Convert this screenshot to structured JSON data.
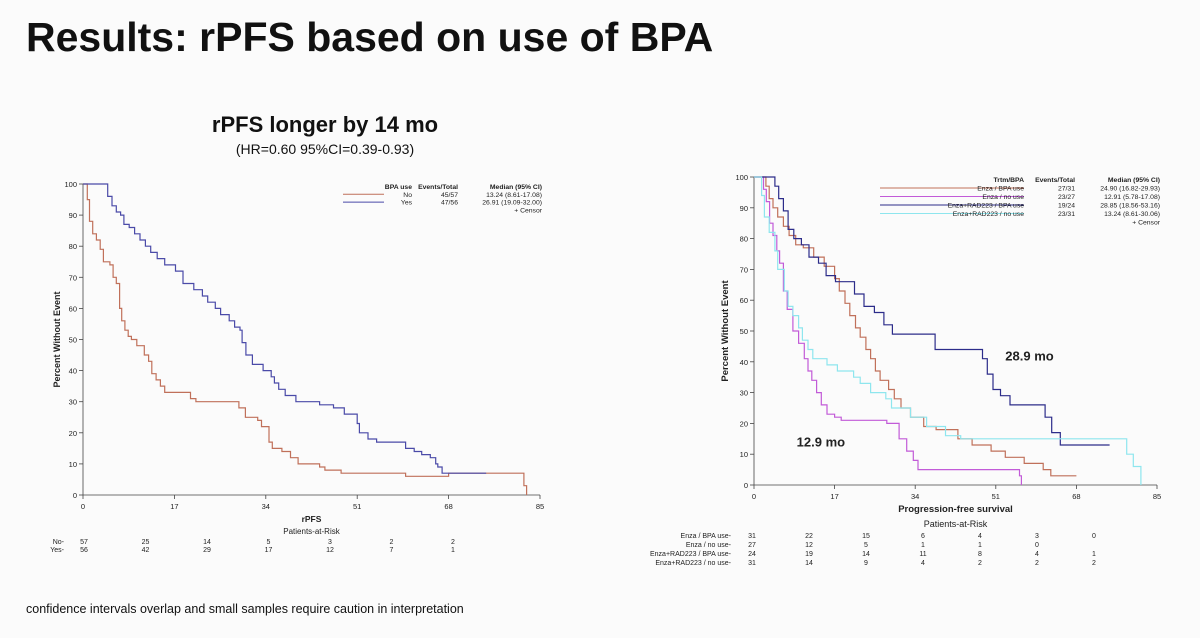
{
  "page": {
    "title": "Results: rPFS based on use of BPA",
    "subtitle": "rPFS longer by 14 mo",
    "hr_text": "(HR=0.60 95%CI=0.39-0.93)",
    "footnote": "confidence intervals overlap and small samples require caution in interpretation",
    "colors": {
      "red": "#c0705a",
      "blue": "#4a4aa8",
      "navy": "#2c2c8a",
      "violet": "#c25bd8",
      "cyan": "#8ee6ee"
    }
  },
  "chart_data": [
    {
      "type": "line",
      "ylabel": "Percent Without Event",
      "xlabel": "rPFS",
      "xlim": [
        0,
        85
      ],
      "ylim": [
        0,
        100
      ],
      "x_ticks": [
        0,
        17,
        34,
        51,
        68,
        85
      ],
      "y_ticks": [
        0,
        10,
        20,
        30,
        40,
        50,
        60,
        70,
        80,
        90,
        100
      ],
      "legend_header": [
        "BPA use",
        "Events/Total",
        "Median (95% CI)"
      ],
      "censor_label": "+ Censor",
      "series": [
        {
          "name": "No",
          "events_total": "45/57",
          "median": "13.24 (8.61-17.08)",
          "color": "#c0705a",
          "points": [
            [
              0,
              100
            ],
            [
              0.8,
              95
            ],
            [
              1.2,
              88
            ],
            [
              1.8,
              84
            ],
            [
              2.5,
              82
            ],
            [
              3.2,
              79
            ],
            [
              3.8,
              75
            ],
            [
              5,
              74
            ],
            [
              5.6,
              70
            ],
            [
              6.2,
              68
            ],
            [
              6.8,
              60
            ],
            [
              7.2,
              56
            ],
            [
              7.8,
              53
            ],
            [
              8.4,
              51
            ],
            [
              9,
              50
            ],
            [
              10,
              48
            ],
            [
              11.4,
              45
            ],
            [
              12.2,
              43
            ],
            [
              12.8,
              39
            ],
            [
              13.6,
              37
            ],
            [
              14.4,
              35
            ],
            [
              15.2,
              33
            ],
            [
              20,
              31
            ],
            [
              21,
              30
            ],
            [
              29,
              28
            ],
            [
              30.2,
              25
            ],
            [
              32.5,
              24
            ],
            [
              33.2,
              22
            ],
            [
              34.6,
              17
            ],
            [
              35.2,
              15
            ],
            [
              37,
              14
            ],
            [
              38.6,
              12
            ],
            [
              40,
              10
            ],
            [
              44,
              9
            ],
            [
              45,
              8
            ],
            [
              48,
              7
            ],
            [
              60,
              6
            ],
            [
              68,
              7
            ],
            [
              73,
              7
            ],
            [
              78,
              7
            ],
            [
              82,
              3
            ],
            [
              82.5,
              0
            ]
          ]
        },
        {
          "name": "Yes",
          "events_total": "47/56",
          "median": "26.91 (19.09-32.00)",
          "color": "#4a4aa8",
          "points": [
            [
              0,
              100
            ],
            [
              3.5,
              100
            ],
            [
              4.6,
              96
            ],
            [
              5.4,
              93
            ],
            [
              6.2,
              91
            ],
            [
              7,
              90
            ],
            [
              7.6,
              87
            ],
            [
              8.6,
              86
            ],
            [
              9.6,
              84
            ],
            [
              10.6,
              82
            ],
            [
              11.6,
              80
            ],
            [
              12.6,
              78
            ],
            [
              13.8,
              76
            ],
            [
              15.2,
              74
            ],
            [
              17.2,
              72
            ],
            [
              18.6,
              68
            ],
            [
              20.6,
              66
            ],
            [
              22.2,
              64
            ],
            [
              23.2,
              62
            ],
            [
              24.6,
              60
            ],
            [
              25.6,
              58
            ],
            [
              27.2,
              56
            ],
            [
              28.2,
              54
            ],
            [
              29.2,
              53
            ],
            [
              29.6,
              49
            ],
            [
              30.3,
              45
            ],
            [
              31.5,
              42
            ],
            [
              33.5,
              40
            ],
            [
              35,
              38
            ],
            [
              35.6,
              36
            ],
            [
              36.4,
              34
            ],
            [
              37.6,
              32
            ],
            [
              39.6,
              30
            ],
            [
              44,
              29
            ],
            [
              46.6,
              28
            ],
            [
              48.6,
              26
            ],
            [
              51,
              23
            ],
            [
              51.4,
              20
            ],
            [
              53,
              18
            ],
            [
              54.6,
              17
            ],
            [
              60,
              15
            ],
            [
              61.6,
              14
            ],
            [
              63,
              13
            ],
            [
              64.6,
              12
            ],
            [
              65.6,
              10
            ],
            [
              66,
              9
            ],
            [
              66.8,
              7
            ],
            [
              75,
              7
            ]
          ]
        }
      ],
      "risk_table": {
        "title": "Patients-at-Risk",
        "rows": [
          {
            "label": "No-",
            "values": [
              "57",
              "25",
              "14",
              "5",
              "3",
              "2",
              "2"
            ]
          },
          {
            "label": "Yes-",
            "values": [
              "56",
              "42",
              "29",
              "17",
              "12",
              "7",
              "1"
            ]
          }
        ]
      }
    },
    {
      "type": "line",
      "ylabel": "Percent Without Event",
      "xlabel": "Progression-free survival",
      "xlim": [
        0,
        85
      ],
      "ylim": [
        0,
        100
      ],
      "x_ticks": [
        0,
        17,
        34,
        51,
        68,
        85
      ],
      "y_ticks": [
        0,
        10,
        20,
        30,
        40,
        50,
        60,
        70,
        80,
        90,
        100
      ],
      "legend_header": [
        "Trtm/BPA",
        "Events/Total",
        "Median (95% CI)"
      ],
      "censor_label": "+ Censor",
      "annotations": [
        "28.9 mo",
        "12.9 mo"
      ],
      "series": [
        {
          "name": "Enza / BPA use",
          "events_total": "27/31",
          "median": "24.90 (16.82-29.93)",
          "color": "#c0705a",
          "points": [
            [
              0,
              100
            ],
            [
              2.5,
              97
            ],
            [
              3.2,
              93
            ],
            [
              4,
              90
            ],
            [
              5,
              87
            ],
            [
              6.2,
              84
            ],
            [
              7.4,
              81
            ],
            [
              8.8,
              78
            ],
            [
              10.4,
              77
            ],
            [
              12.6,
              74
            ],
            [
              14.8,
              71
            ],
            [
              17,
              67
            ],
            [
              18,
              63
            ],
            [
              19.2,
              59
            ],
            [
              20.2,
              55
            ],
            [
              21.4,
              51
            ],
            [
              22.4,
              48
            ],
            [
              23.6,
              44
            ],
            [
              24.6,
              41
            ],
            [
              25.6,
              37
            ],
            [
              26.6,
              34
            ],
            [
              28.4,
              31
            ],
            [
              29.6,
              28
            ],
            [
              31,
              25
            ],
            [
              33,
              22
            ],
            [
              35.8,
              19
            ],
            [
              38.4,
              18
            ],
            [
              43,
              15
            ],
            [
              46,
              13
            ],
            [
              50,
              11
            ],
            [
              53,
              9
            ],
            [
              57,
              7
            ],
            [
              61,
              5
            ],
            [
              62.6,
              3
            ],
            [
              68,
              3
            ]
          ]
        },
        {
          "name": "Enza / no use",
          "events_total": "23/27",
          "median": "12.91 (5.78-17.08)",
          "color": "#c25bd8",
          "points": [
            [
              0,
              100
            ],
            [
              2,
              96
            ],
            [
              2.6,
              92
            ],
            [
              3.3,
              85
            ],
            [
              4,
              81
            ],
            [
              4.8,
              76
            ],
            [
              5.4,
              72
            ],
            [
              6.2,
              63
            ],
            [
              7,
              57
            ],
            [
              8.2,
              50
            ],
            [
              9.4,
              46
            ],
            [
              10.6,
              41
            ],
            [
              11.4,
              37
            ],
            [
              12.2,
              34
            ],
            [
              13.2,
              30
            ],
            [
              14.2,
              26
            ],
            [
              15.4,
              23
            ],
            [
              17,
              22
            ],
            [
              18.4,
              21
            ],
            [
              28,
              20
            ],
            [
              30.6,
              15
            ],
            [
              32.2,
              11
            ],
            [
              33.6,
              8
            ],
            [
              34.6,
              5
            ],
            [
              48,
              5
            ],
            [
              56,
              3
            ],
            [
              56.4,
              0
            ]
          ]
        },
        {
          "name": "Enza+RAD223 / BPA use",
          "events_total": "19/24",
          "median": "28.85 (18.56-53.16)",
          "color": "#2c2c8a",
          "points": [
            [
              0,
              100
            ],
            [
              3.5,
              100
            ],
            [
              4.4,
              97
            ],
            [
              5.2,
              93
            ],
            [
              6.2,
              89
            ],
            [
              7.2,
              83
            ],
            [
              8.4,
              80
            ],
            [
              10,
              78
            ],
            [
              11.6,
              74
            ],
            [
              13.6,
              72
            ],
            [
              15.2,
              68
            ],
            [
              17.2,
              66
            ],
            [
              20,
              66
            ],
            [
              21.2,
              62
            ],
            [
              23.2,
              58
            ],
            [
              25.4,
              56
            ],
            [
              27.4,
              52
            ],
            [
              29.2,
              49
            ],
            [
              36,
              49
            ],
            [
              38.2,
              44
            ],
            [
              46,
              44
            ],
            [
              48.2,
              41
            ],
            [
              49.2,
              36
            ],
            [
              50.4,
              31
            ],
            [
              52,
              29
            ],
            [
              54,
              26
            ],
            [
              60,
              26
            ],
            [
              61.4,
              22
            ],
            [
              62.8,
              17
            ],
            [
              64.6,
              13
            ],
            [
              75,
              13
            ]
          ]
        },
        {
          "name": "Enza+RAD223 / no use",
          "events_total": "23/31",
          "median": "13.24 (8.61-30.06)",
          "color": "#8ee6ee",
          "points": [
            [
              0,
              100
            ],
            [
              1.6,
              94
            ],
            [
              2.2,
              87
            ],
            [
              3.2,
              82
            ],
            [
              4.4,
              76
            ],
            [
              5,
              70
            ],
            [
              6.4,
              63
            ],
            [
              7.2,
              58
            ],
            [
              8.2,
              55
            ],
            [
              9.4,
              51
            ],
            [
              10.2,
              47
            ],
            [
              11.4,
              44
            ],
            [
              12.4,
              41
            ],
            [
              15.4,
              39
            ],
            [
              17.6,
              37
            ],
            [
              21,
              35
            ],
            [
              22.4,
              33
            ],
            [
              24.6,
              30
            ],
            [
              27.8,
              28
            ],
            [
              29,
              25
            ],
            [
              33,
              22
            ],
            [
              36.4,
              19
            ],
            [
              40.4,
              16
            ],
            [
              43.6,
              15
            ],
            [
              77,
              15
            ],
            [
              78.6,
              10
            ],
            [
              80,
              6
            ],
            [
              81.6,
              0
            ]
          ]
        }
      ],
      "risk_table": {
        "title": "Patients-at-Risk",
        "rows": [
          {
            "label": "Enza / BPA use-",
            "values": [
              "31",
              "22",
              "15",
              "6",
              "4",
              "3",
              "0"
            ]
          },
          {
            "label": "Enza / no use-",
            "values": [
              "27",
              "12",
              "5",
              "1",
              "1",
              "0",
              ""
            ]
          },
          {
            "label": "Enza+RAD223 / BPA use-",
            "values": [
              "24",
              "19",
              "14",
              "11",
              "8",
              "4",
              "1"
            ]
          },
          {
            "label": "Enza+RAD223 / no use-",
            "values": [
              "31",
              "14",
              "9",
              "4",
              "2",
              "2",
              "2"
            ]
          }
        ]
      }
    }
  ]
}
